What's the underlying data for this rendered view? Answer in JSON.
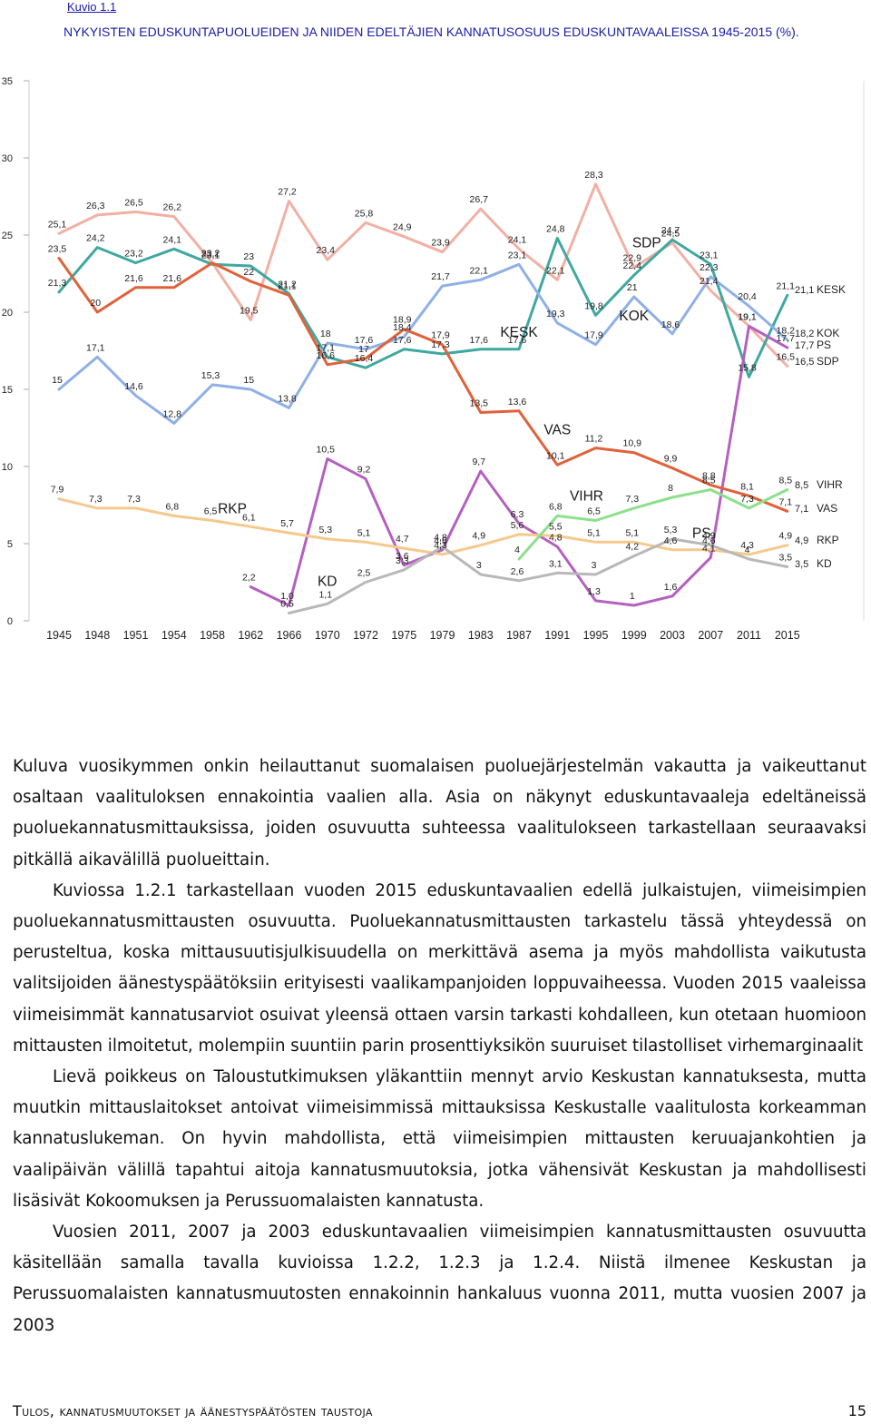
{
  "figure": {
    "label": "Kuvio 1.1",
    "title": "NYKYISTEN EDUSKUNTAPUOLUEIDEN JA NIIDEN EDELTÄJIEN KANNATUSOSUUS EDUSKUNTAVAALEISSA 1945-2015 (%)."
  },
  "chart_data": {
    "type": "line",
    "title": "",
    "xlabel": "",
    "ylabel": "",
    "ylim": [
      0,
      35
    ],
    "yticks": [
      0,
      5,
      10,
      15,
      20,
      25,
      30,
      35
    ],
    "grid": false,
    "categories": [
      "1945",
      "1948",
      "1951",
      "1954",
      "1958",
      "1962",
      "1966",
      "1970",
      "1972",
      "1975",
      "1979",
      "1983",
      "1987",
      "1991",
      "1995",
      "1999",
      "2003",
      "2007",
      "2011",
      "2015"
    ],
    "series": [
      {
        "name": "SDP",
        "color": "#f2b0a4",
        "values": [
          25.1,
          26.3,
          26.5,
          26.2,
          23.2,
          19.5,
          27.2,
          23.4,
          25.8,
          24.9,
          23.9,
          26.7,
          24.1,
          22.1,
          28.3,
          22.9,
          24.5,
          21.4,
          19.1,
          16.5
        ],
        "value_labels": [
          "25,1",
          "26,3",
          "26,5",
          "26,2",
          "23,2",
          "19,5",
          "27,2",
          "23,4",
          "25,8",
          "24,9",
          "23,9",
          "26,7",
          "24,1",
          "22,1",
          "28,3",
          "22,9",
          "24,5",
          "21,4",
          "19,1",
          "16,5"
        ]
      },
      {
        "name": "KESK",
        "color": "#3fa8a0",
        "values": [
          21.3,
          24.2,
          23.2,
          24.1,
          23.1,
          23.0,
          21.2,
          17.1,
          16.4,
          17.6,
          17.3,
          17.6,
          17.6,
          24.8,
          19.8,
          22.4,
          24.7,
          23.1,
          15.8,
          21.1
        ],
        "value_labels": [
          "21,3",
          "24,2",
          "23,2",
          "24,1",
          "23,1",
          "23",
          "21,2",
          "17,1",
          "16,4",
          "17,6",
          "17,3",
          "17,6",
          "17,6",
          "24,8",
          "19,8",
          "22,4",
          "24,7",
          "23,1",
          "15,8",
          "21,1"
        ]
      },
      {
        "name": "KOK",
        "color": "#8fb0e6",
        "values": [
          15.0,
          17.1,
          14.6,
          12.8,
          15.3,
          15.0,
          13.8,
          18.0,
          17.6,
          18.4,
          21.7,
          22.1,
          23.1,
          19.3,
          17.9,
          21.0,
          18.6,
          22.3,
          20.4,
          18.2
        ],
        "value_labels": [
          "15",
          "17,1",
          "14,6",
          "12,8",
          "15,3",
          "15",
          "13,8",
          "18",
          "17,6",
          "18,4",
          "21,7",
          "22,1",
          "23,1",
          "19,3",
          "17,9",
          "21",
          "18,6",
          "22,3",
          "20,4",
          "18,2"
        ]
      },
      {
        "name": "PS",
        "color": "#b460c0",
        "values": [
          null,
          null,
          null,
          null,
          null,
          2.2,
          1.0,
          10.5,
          9.2,
          3.6,
          4.6,
          9.7,
          6.3,
          4.8,
          1.3,
          1.0,
          1.6,
          4.1,
          19.1,
          17.7
        ],
        "value_labels": [
          null,
          null,
          null,
          null,
          null,
          "2,2",
          "1,0",
          "10,5",
          "9,2",
          "3,6",
          "4,6",
          "9,7",
          "6,3",
          "4,8",
          "1,3",
          "1",
          "1,6",
          "4,1",
          "19,1",
          "17,7"
        ]
      },
      {
        "name": "VAS",
        "color": "#e0623a",
        "values": [
          23.5,
          20.0,
          21.6,
          21.6,
          23.2,
          22.0,
          21.1,
          16.6,
          17.0,
          18.9,
          17.9,
          13.5,
          13.6,
          10.1,
          11.2,
          10.9,
          9.9,
          8.8,
          8.1,
          7.1
        ],
        "value_labels": [
          "23,5",
          "20",
          "21,6",
          "21,6",
          "23,2",
          "22",
          "21,1",
          "16,6",
          "17",
          "18,9",
          "17,9",
          "13,5",
          "13,6",
          "10,1",
          "11,2",
          "10,9",
          "9,9",
          "8,8",
          "8,1",
          "7,1"
        ]
      },
      {
        "name": "RKP",
        "color": "#f5c98c",
        "values": [
          7.9,
          7.3,
          7.3,
          6.8,
          6.5,
          6.1,
          5.7,
          5.3,
          5.1,
          4.7,
          4.3,
          4.9,
          5.6,
          5.5,
          5.1,
          5.1,
          4.6,
          4.6,
          4.3,
          4.9
        ],
        "value_labels": [
          "7,9",
          "7,3",
          "7,3",
          "6,8",
          "6,5",
          "6,1",
          "5,7",
          "5,3",
          "5,1",
          "4,7",
          "4,3",
          "4,9",
          "5,6",
          "5,5",
          "5,1",
          "5,1",
          "4,6",
          "4,6",
          "4,3",
          "4,9"
        ]
      },
      {
        "name": "KD",
        "color": "#b8b8b8",
        "values": [
          null,
          null,
          null,
          null,
          null,
          null,
          0.5,
          1.1,
          2.5,
          3.3,
          4.8,
          3.0,
          2.6,
          3.1,
          3.0,
          4.2,
          5.3,
          4.9,
          4.0,
          3.5
        ],
        "value_labels": [
          null,
          null,
          null,
          null,
          null,
          null,
          "0,5",
          "1,1",
          "2,5",
          "3,3",
          "4,8",
          "3",
          "2,6",
          "3,1",
          "3",
          "4,2",
          "5,3",
          "4,9",
          "4",
          "3,5"
        ]
      },
      {
        "name": "VIHR",
        "color": "#8ce08c",
        "values": [
          null,
          null,
          null,
          null,
          null,
          null,
          null,
          null,
          null,
          null,
          null,
          null,
          4.0,
          6.8,
          6.5,
          7.3,
          8.0,
          8.5,
          7.3,
          8.5
        ],
        "value_labels": [
          null,
          null,
          null,
          null,
          null,
          null,
          null,
          null,
          null,
          null,
          null,
          null,
          "4",
          "6,8",
          "6,5",
          "7,3",
          "8",
          "8,5",
          "7,3",
          "8,5"
        ]
      }
    ],
    "series_labels": [
      {
        "name": "KESK",
        "label": "KESK"
      },
      {
        "name": "SDP",
        "label": "SDP"
      },
      {
        "name": "KOK",
        "label": "KOK"
      },
      {
        "name": "VAS",
        "label": "VAS"
      },
      {
        "name": "RKP",
        "label": "RKP"
      },
      {
        "name": "KD",
        "label": "KD"
      },
      {
        "name": "VIHR",
        "label": "VIHR"
      },
      {
        "name": "PS",
        "label": "PS"
      }
    ],
    "end_legend": [
      {
        "value": "21,1",
        "name": "KESK"
      },
      {
        "value": "18,2",
        "name": "KOK"
      },
      {
        "value": "17,7",
        "name": "PS"
      },
      {
        "value": "16,5",
        "name": "SDP"
      },
      {
        "value": "8,5",
        "name": "VIHR"
      },
      {
        "value": "7,1",
        "name": "VAS"
      },
      {
        "value": "4,9",
        "name": "RKP"
      },
      {
        "value": "3,5",
        "name": "KD"
      }
    ],
    "legend": "end-of-line labels at right"
  },
  "body": {
    "p1": "Kuluva vuosikymmen onkin heilauttanut suomalaisen puoluejärjestelmän vakautta ja vaikeuttanut osaltaan vaalituloksen ennakointia vaalien alla. Asia on näkynyt eduskuntavaaleja edeltäneissä puoluekannatusmittauksissa, joiden osuvuutta suhteessa vaalitulokseen tarkastellaan seuraavaksi pitkällä aikavälillä puolueittain.",
    "p2": "Kuviossa 1.2.1 tarkastellaan vuoden 2015 eduskuntavaalien edellä julkaistujen, viimeisimpien puoluekannatusmittausten osuvuutta. Puoluekannatusmittausten tarkastelu tässä yhteydessä on perusteltua, koska mittausuutisjulkisuudella on merkittävä asema ja myös mahdollista vaikutusta valitsijoiden äänestyspäätöksiin erityisesti vaalikampanjoiden loppuvaiheessa. Vuoden 2015 vaaleissa viimeisimmät kannatusarviot osuivat yleensä ottaen varsin tarkasti kohdalleen, kun otetaan huomioon mittausten ilmoitetut, molempiin suuntiin parin prosenttiyksikön suuruiset tilastolliset virhemarginaalit",
    "p3": "Lievä poikkeus on Taloustutkimuksen yläkanttiin mennyt arvio Keskustan kannatuksesta, mutta muutkin mittauslaitokset antoivat viimeisimmissä mittauksissa Keskustalle vaalitulosta korkeamman kannatuslukeman. On hyvin mahdollista, että viimeisimpien mittausten keruuajankohtien ja vaalipäivän välillä tapahtui aitoja kannatusmuutoksia, jotka vähensivät Keskustan ja mahdollisesti lisäsivät Kokoomuksen ja Perussuomalaisten kannatusta.",
    "p4": "Vuosien 2011, 2007 ja 2003 eduskuntavaalien viimeisimpien kannatusmittausten osuvuutta käsitellään samalla tavalla kuvioissa 1.2.2, 1.2.3 ja 1.2.4. Niistä ilmenee Keskustan ja Perussuomalaisten kannatusmuutosten ennakoinnin hankaluus vuonna 2011, mutta vuosien 2007 ja 2003"
  },
  "footer": {
    "left": "Tulos, kannatusmuutokset ja äänestyspäätösten taustoja",
    "page": "15"
  }
}
